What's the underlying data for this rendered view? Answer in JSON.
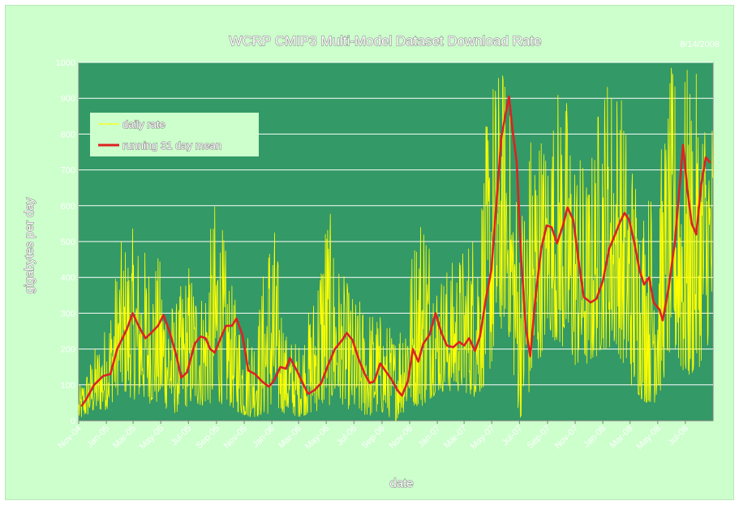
{
  "chart_data": {
    "type": "line",
    "title": "WCRP CMIP3 Multi-Model Dataset Download Rate",
    "date_stamp": "8/14/2008",
    "xlabel": "date",
    "ylabel": "gigabytes per day",
    "ylim": [
      0,
      1000
    ],
    "yticks": [
      0,
      100,
      200,
      300,
      400,
      500,
      600,
      700,
      800,
      900,
      1000
    ],
    "xlim": [
      "2004-11-01",
      "2008-08-31"
    ],
    "xticks": [
      {
        "label": "Nov-04",
        "date": "2004-11-01"
      },
      {
        "label": "Jan-05",
        "date": "2005-01-01"
      },
      {
        "label": "Mar-05",
        "date": "2005-03-01"
      },
      {
        "label": "May-05",
        "date": "2005-05-01"
      },
      {
        "label": "Jul-05",
        "date": "2005-07-01"
      },
      {
        "label": "Sep-05",
        "date": "2005-09-01"
      },
      {
        "label": "Nov-05",
        "date": "2005-11-01"
      },
      {
        "label": "Jan-06",
        "date": "2006-01-01"
      },
      {
        "label": "Mar-06",
        "date": "2006-03-01"
      },
      {
        "label": "May-06",
        "date": "2006-05-01"
      },
      {
        "label": "Jul-06",
        "date": "2006-07-01"
      },
      {
        "label": "Sep-06",
        "date": "2006-09-01"
      },
      {
        "label": "Nov-06",
        "date": "2006-11-01"
      },
      {
        "label": "Jan-07",
        "date": "2007-01-01"
      },
      {
        "label": "Mar-07",
        "date": "2007-03-01"
      },
      {
        "label": "May-07",
        "date": "2007-05-01"
      },
      {
        "label": "Jul-07",
        "date": "2007-07-01"
      },
      {
        "label": "Sep-07",
        "date": "2007-09-01"
      },
      {
        "label": "Nov-07",
        "date": "2007-11-01"
      },
      {
        "label": "Jan-08",
        "date": "2008-01-01"
      },
      {
        "label": "Mar-08",
        "date": "2008-03-01"
      },
      {
        "label": "May-08",
        "date": "2008-05-01"
      },
      {
        "label": "Jul-08",
        "date": "2008-07-01"
      }
    ],
    "grid": true,
    "legend_position": "top-left",
    "colors": {
      "plot_bg": "#339966",
      "outer_bg": "#ccffcc",
      "daily": "#ffff00",
      "mean": "#dd2222",
      "grid": "#ffffff"
    },
    "series": [
      {
        "name": "running 31 day mean",
        "points": [
          [
            "2004-11-07",
            40
          ],
          [
            "2004-11-20",
            65
          ],
          [
            "2004-12-05",
            100
          ],
          [
            "2004-12-25",
            125
          ],
          [
            "2005-01-10",
            130
          ],
          [
            "2005-01-25",
            200
          ],
          [
            "2005-02-15",
            255
          ],
          [
            "2005-02-28",
            300
          ],
          [
            "2005-03-15",
            260
          ],
          [
            "2005-03-28",
            230
          ],
          [
            "2005-04-10",
            245
          ],
          [
            "2005-04-25",
            265
          ],
          [
            "2005-05-07",
            295
          ],
          [
            "2005-05-20",
            250
          ],
          [
            "2005-06-05",
            180
          ],
          [
            "2005-06-15",
            120
          ],
          [
            "2005-06-28",
            135
          ],
          [
            "2005-07-15",
            215
          ],
          [
            "2005-07-28",
            235
          ],
          [
            "2005-08-08",
            230
          ],
          [
            "2005-08-18",
            200
          ],
          [
            "2005-08-28",
            190
          ],
          [
            "2005-09-10",
            230
          ],
          [
            "2005-09-22",
            265
          ],
          [
            "2005-10-05",
            265
          ],
          [
            "2005-10-15",
            285
          ],
          [
            "2005-10-28",
            240
          ],
          [
            "2005-11-10",
            140
          ],
          [
            "2005-11-25",
            130
          ],
          [
            "2005-12-10",
            110
          ],
          [
            "2005-12-25",
            95
          ],
          [
            "2006-01-05",
            110
          ],
          [
            "2006-01-20",
            150
          ],
          [
            "2006-02-01",
            145
          ],
          [
            "2006-02-10",
            175
          ],
          [
            "2006-02-25",
            140
          ],
          [
            "2006-03-10",
            105
          ],
          [
            "2006-03-22",
            75
          ],
          [
            "2006-04-05",
            85
          ],
          [
            "2006-04-20",
            105
          ],
          [
            "2006-05-05",
            155
          ],
          [
            "2006-05-20",
            200
          ],
          [
            "2006-06-05",
            225
          ],
          [
            "2006-06-15",
            245
          ],
          [
            "2006-06-28",
            225
          ],
          [
            "2006-07-12",
            170
          ],
          [
            "2006-07-25",
            130
          ],
          [
            "2006-08-05",
            105
          ],
          [
            "2006-08-15",
            110
          ],
          [
            "2006-08-28",
            160
          ],
          [
            "2006-09-08",
            140
          ],
          [
            "2006-09-22",
            115
          ],
          [
            "2006-10-05",
            85
          ],
          [
            "2006-10-15",
            70
          ],
          [
            "2006-10-28",
            110
          ],
          [
            "2006-11-08",
            200
          ],
          [
            "2006-11-20",
            165
          ],
          [
            "2006-12-01",
            215
          ],
          [
            "2006-12-15",
            240
          ],
          [
            "2006-12-28",
            300
          ],
          [
            "2007-01-10",
            245
          ],
          [
            "2007-01-22",
            210
          ],
          [
            "2007-02-05",
            205
          ],
          [
            "2007-02-18",
            220
          ],
          [
            "2007-03-01",
            210
          ],
          [
            "2007-03-12",
            230
          ],
          [
            "2007-03-25",
            195
          ],
          [
            "2007-04-05",
            235
          ],
          [
            "2007-04-18",
            340
          ],
          [
            "2007-04-30",
            420
          ],
          [
            "2007-05-12",
            620
          ],
          [
            "2007-05-22",
            790
          ],
          [
            "2007-06-01",
            860
          ],
          [
            "2007-06-08",
            905
          ],
          [
            "2007-06-15",
            820
          ],
          [
            "2007-06-25",
            720
          ],
          [
            "2007-07-05",
            450
          ],
          [
            "2007-07-15",
            260
          ],
          [
            "2007-07-25",
            180
          ],
          [
            "2007-08-05",
            340
          ],
          [
            "2007-08-18",
            480
          ],
          [
            "2007-08-30",
            545
          ],
          [
            "2007-09-10",
            540
          ],
          [
            "2007-09-22",
            495
          ],
          [
            "2007-10-05",
            545
          ],
          [
            "2007-10-15",
            595
          ],
          [
            "2007-10-28",
            560
          ],
          [
            "2007-11-08",
            450
          ],
          [
            "2007-11-20",
            345
          ],
          [
            "2007-12-05",
            330
          ],
          [
            "2007-12-18",
            340
          ],
          [
            "2008-01-01",
            390
          ],
          [
            "2008-01-15",
            480
          ],
          [
            "2008-01-28",
            520
          ],
          [
            "2008-02-08",
            555
          ],
          [
            "2008-02-18",
            580
          ],
          [
            "2008-02-28",
            560
          ],
          [
            "2008-03-10",
            500
          ],
          [
            "2008-03-22",
            420
          ],
          [
            "2008-04-01",
            380
          ],
          [
            "2008-04-12",
            400
          ],
          [
            "2008-04-22",
            330
          ],
          [
            "2008-05-05",
            310
          ],
          [
            "2008-05-12",
            280
          ],
          [
            "2008-05-25",
            370
          ],
          [
            "2008-06-08",
            500
          ],
          [
            "2008-06-18",
            650
          ],
          [
            "2008-06-26",
            770
          ],
          [
            "2008-07-05",
            650
          ],
          [
            "2008-07-15",
            550
          ],
          [
            "2008-07-25",
            520
          ],
          [
            "2008-08-05",
            660
          ],
          [
            "2008-08-15",
            735
          ],
          [
            "2008-08-25",
            720
          ]
        ]
      },
      {
        "name": "daily rate",
        "envelope": [
          [
            "2004-11-01",
            0,
            90
          ],
          [
            "2004-12-01",
            20,
            190
          ],
          [
            "2005-01-01",
            30,
            280
          ],
          [
            "2005-02-01",
            80,
            500
          ],
          [
            "2005-03-01",
            60,
            540
          ],
          [
            "2005-04-01",
            50,
            480
          ],
          [
            "2005-05-01",
            40,
            460
          ],
          [
            "2005-06-01",
            20,
            320
          ],
          [
            "2005-07-01",
            40,
            460
          ],
          [
            "2005-08-01",
            40,
            380
          ],
          [
            "2005-09-01",
            50,
            660
          ],
          [
            "2005-10-01",
            40,
            400
          ],
          [
            "2005-11-01",
            10,
            250
          ],
          [
            "2005-12-01",
            10,
            300
          ],
          [
            "2006-01-01",
            20,
            630
          ],
          [
            "2006-02-01",
            20,
            250
          ],
          [
            "2006-03-01",
            10,
            220
          ],
          [
            "2006-04-01",
            20,
            350
          ],
          [
            "2006-05-01",
            40,
            640
          ],
          [
            "2006-06-01",
            50,
            430
          ],
          [
            "2006-07-01",
            20,
            350
          ],
          [
            "2006-08-01",
            10,
            330
          ],
          [
            "2006-09-01",
            20,
            300
          ],
          [
            "2006-10-01",
            0,
            250
          ],
          [
            "2006-11-01",
            40,
            460
          ],
          [
            "2006-12-01",
            40,
            680
          ],
          [
            "2007-01-01",
            80,
            420
          ],
          [
            "2007-02-01",
            80,
            450
          ],
          [
            "2007-03-01",
            80,
            500
          ],
          [
            "2007-04-01",
            60,
            600
          ],
          [
            "2007-05-01",
            150,
            1000
          ],
          [
            "2007-06-01",
            300,
            1000
          ],
          [
            "2007-07-01",
            0,
            600
          ],
          [
            "2007-08-01",
            100,
            900
          ],
          [
            "2007-09-01",
            250,
            800
          ],
          [
            "2007-10-01",
            200,
            1000
          ],
          [
            "2007-11-01",
            150,
            800
          ],
          [
            "2007-12-01",
            150,
            700
          ],
          [
            "2008-01-01",
            200,
            1000
          ],
          [
            "2008-02-01",
            200,
            1000
          ],
          [
            "2008-03-01",
            100,
            800
          ],
          [
            "2008-04-01",
            50,
            650
          ],
          [
            "2008-05-01",
            50,
            700
          ],
          [
            "2008-06-01",
            200,
            1000
          ],
          [
            "2008-07-01",
            100,
            1000
          ],
          [
            "2008-08-01",
            150,
            960
          ],
          [
            "2008-08-31",
            250,
            900
          ]
        ]
      }
    ]
  }
}
